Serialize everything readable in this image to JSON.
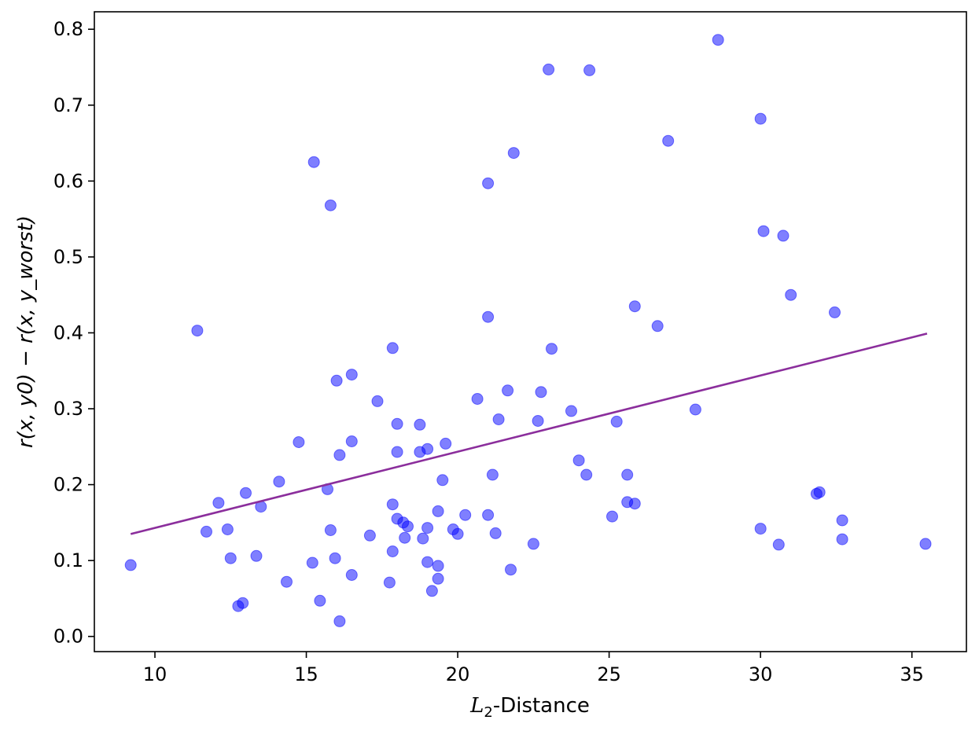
{
  "chart_data": {
    "type": "scatter",
    "xlabel": {
      "prefix": "L",
      "subscript": "2",
      "suffix": "-Distance"
    },
    "ylabel": {
      "text": "r(x, y0) − r(x, y_worst)"
    },
    "xlim": [
      8,
      36.8
    ],
    "ylim": [
      -0.02,
      0.823
    ],
    "xticks": [
      10,
      15,
      20,
      25,
      30,
      35
    ],
    "yticks": [
      0.0,
      0.1,
      0.2,
      0.3,
      0.4,
      0.5,
      0.6,
      0.7,
      0.8
    ],
    "grid": false,
    "point_color": "#0000ff",
    "point_opacity": 0.5,
    "trend_color": "#8b2e9c",
    "trendline": {
      "x1": 9.2,
      "y1": 0.135,
      "x2": 35.5,
      "y2": 0.399
    },
    "points": [
      {
        "x": 9.2,
        "y": 0.094
      },
      {
        "x": 11.4,
        "y": 0.403
      },
      {
        "x": 11.7,
        "y": 0.138
      },
      {
        "x": 12.1,
        "y": 0.176
      },
      {
        "x": 12.4,
        "y": 0.141
      },
      {
        "x": 12.5,
        "y": 0.103
      },
      {
        "x": 12.75,
        "y": 0.04
      },
      {
        "x": 12.9,
        "y": 0.044
      },
      {
        "x": 13.0,
        "y": 0.189
      },
      {
        "x": 13.35,
        "y": 0.106
      },
      {
        "x": 13.5,
        "y": 0.171
      },
      {
        "x": 14.1,
        "y": 0.204
      },
      {
        "x": 14.35,
        "y": 0.072
      },
      {
        "x": 14.75,
        "y": 0.256
      },
      {
        "x": 15.2,
        "y": 0.097
      },
      {
        "x": 15.25,
        "y": 0.625
      },
      {
        "x": 15.45,
        "y": 0.047
      },
      {
        "x": 15.7,
        "y": 0.194
      },
      {
        "x": 15.8,
        "y": 0.568
      },
      {
        "x": 15.8,
        "y": 0.14
      },
      {
        "x": 15.95,
        "y": 0.103
      },
      {
        "x": 16.0,
        "y": 0.337
      },
      {
        "x": 16.1,
        "y": 0.239
      },
      {
        "x": 16.1,
        "y": 0.02
      },
      {
        "x": 16.5,
        "y": 0.345
      },
      {
        "x": 16.5,
        "y": 0.257
      },
      {
        "x": 16.5,
        "y": 0.081
      },
      {
        "x": 17.1,
        "y": 0.133
      },
      {
        "x": 17.35,
        "y": 0.31
      },
      {
        "x": 17.75,
        "y": 0.071
      },
      {
        "x": 17.85,
        "y": 0.38
      },
      {
        "x": 17.85,
        "y": 0.174
      },
      {
        "x": 17.85,
        "y": 0.112
      },
      {
        "x": 18.0,
        "y": 0.28
      },
      {
        "x": 18.0,
        "y": 0.243
      },
      {
        "x": 18.0,
        "y": 0.155
      },
      {
        "x": 18.2,
        "y": 0.15
      },
      {
        "x": 18.25,
        "y": 0.13
      },
      {
        "x": 18.35,
        "y": 0.145
      },
      {
        "x": 18.75,
        "y": 0.279
      },
      {
        "x": 18.75,
        "y": 0.243
      },
      {
        "x": 18.85,
        "y": 0.129
      },
      {
        "x": 19.0,
        "y": 0.247
      },
      {
        "x": 19.0,
        "y": 0.143
      },
      {
        "x": 19.0,
        "y": 0.098
      },
      {
        "x": 19.15,
        "y": 0.06
      },
      {
        "x": 19.35,
        "y": 0.165
      },
      {
        "x": 19.35,
        "y": 0.093
      },
      {
        "x": 19.35,
        "y": 0.076
      },
      {
        "x": 19.5,
        "y": 0.206
      },
      {
        "x": 19.6,
        "y": 0.254
      },
      {
        "x": 19.85,
        "y": 0.141
      },
      {
        "x": 20.0,
        "y": 0.135
      },
      {
        "x": 20.25,
        "y": 0.16
      },
      {
        "x": 20.65,
        "y": 0.313
      },
      {
        "x": 21.0,
        "y": 0.597
      },
      {
        "x": 21.0,
        "y": 0.421
      },
      {
        "x": 21.0,
        "y": 0.16
      },
      {
        "x": 21.15,
        "y": 0.213
      },
      {
        "x": 21.25,
        "y": 0.136
      },
      {
        "x": 21.35,
        "y": 0.286
      },
      {
        "x": 21.65,
        "y": 0.324
      },
      {
        "x": 21.75,
        "y": 0.088
      },
      {
        "x": 21.85,
        "y": 0.637
      },
      {
        "x": 22.5,
        "y": 0.122
      },
      {
        "x": 22.65,
        "y": 0.284
      },
      {
        "x": 22.75,
        "y": 0.322
      },
      {
        "x": 23.0,
        "y": 0.747
      },
      {
        "x": 23.1,
        "y": 0.379
      },
      {
        "x": 23.75,
        "y": 0.297
      },
      {
        "x": 24.0,
        "y": 0.232
      },
      {
        "x": 24.25,
        "y": 0.213
      },
      {
        "x": 24.35,
        "y": 0.746
      },
      {
        "x": 25.1,
        "y": 0.158
      },
      {
        "x": 25.25,
        "y": 0.283
      },
      {
        "x": 25.6,
        "y": 0.213
      },
      {
        "x": 25.6,
        "y": 0.177
      },
      {
        "x": 25.85,
        "y": 0.435
      },
      {
        "x": 25.85,
        "y": 0.175
      },
      {
        "x": 26.6,
        "y": 0.409
      },
      {
        "x": 26.95,
        "y": 0.653
      },
      {
        "x": 27.85,
        "y": 0.299
      },
      {
        "x": 28.6,
        "y": 0.786
      },
      {
        "x": 30.0,
        "y": 0.682
      },
      {
        "x": 30.0,
        "y": 0.142
      },
      {
        "x": 30.1,
        "y": 0.534
      },
      {
        "x": 30.6,
        "y": 0.121
      },
      {
        "x": 30.75,
        "y": 0.528
      },
      {
        "x": 31.0,
        "y": 0.45
      },
      {
        "x": 31.85,
        "y": 0.188
      },
      {
        "x": 31.95,
        "y": 0.19
      },
      {
        "x": 32.45,
        "y": 0.427
      },
      {
        "x": 32.7,
        "y": 0.153
      },
      {
        "x": 32.7,
        "y": 0.128
      },
      {
        "x": 35.45,
        "y": 0.122
      }
    ]
  }
}
